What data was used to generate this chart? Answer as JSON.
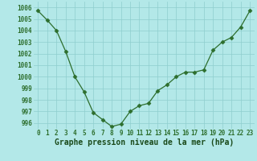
{
  "x": [
    0,
    1,
    2,
    3,
    4,
    5,
    6,
    7,
    8,
    9,
    10,
    11,
    12,
    13,
    14,
    15,
    16,
    17,
    18,
    19,
    20,
    21,
    22,
    23
  ],
  "y": [
    1005.7,
    1004.9,
    1004.0,
    1002.2,
    1000.0,
    998.7,
    996.9,
    996.3,
    995.7,
    995.9,
    997.0,
    997.5,
    997.7,
    998.8,
    999.3,
    1000.0,
    1000.4,
    1000.4,
    1000.6,
    1002.3,
    1003.0,
    1003.4,
    1004.3,
    1005.7
  ],
  "line_color": "#2d6e2d",
  "marker": "D",
  "marker_size": 2.5,
  "bg_color": "#b3e8e8",
  "grid_color": "#8ecece",
  "xlabel": "Graphe pression niveau de la mer (hPa)",
  "xlabel_color": "#1a4a1a",
  "xlabel_fontsize": 7.0,
  "tick_label_color": "#2d6e2d",
  "tick_fontsize": 5.5,
  "ylim": [
    995.5,
    1006.5
  ],
  "yticks": [
    996,
    997,
    998,
    999,
    1000,
    1001,
    1002,
    1003,
    1004,
    1005,
    1006
  ],
  "xlim": [
    -0.5,
    23.5
  ],
  "xticks": [
    0,
    1,
    2,
    3,
    4,
    5,
    6,
    7,
    8,
    9,
    10,
    11,
    12,
    13,
    14,
    15,
    16,
    17,
    18,
    19,
    20,
    21,
    22,
    23
  ]
}
